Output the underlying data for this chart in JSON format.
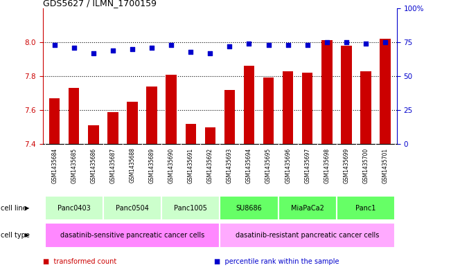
{
  "title": "GDS5627 / ILMN_1700159",
  "samples": [
    "GSM1435684",
    "GSM1435685",
    "GSM1435686",
    "GSM1435687",
    "GSM1435688",
    "GSM1435689",
    "GSM1435690",
    "GSM1435691",
    "GSM1435692",
    "GSM1435693",
    "GSM1435694",
    "GSM1435695",
    "GSM1435696",
    "GSM1435697",
    "GSM1435698",
    "GSM1435699",
    "GSM1435700",
    "GSM1435701"
  ],
  "bar_values": [
    7.67,
    7.73,
    7.51,
    7.59,
    7.65,
    7.74,
    7.81,
    7.52,
    7.5,
    7.72,
    7.86,
    7.79,
    7.83,
    7.82,
    8.01,
    7.98,
    7.83,
    8.02
  ],
  "dot_values": [
    73,
    71,
    67,
    69,
    70,
    71,
    73,
    68,
    67,
    72,
    74,
    73,
    73,
    73,
    75,
    75,
    74,
    75
  ],
  "ylim_left": [
    7.4,
    8.2
  ],
  "ylim_right": [
    0,
    100
  ],
  "yticks_left": [
    7.4,
    7.6,
    7.8,
    8.0
  ],
  "yticks_right": [
    0,
    25,
    50,
    75,
    100
  ],
  "ytick_labels_right": [
    "0",
    "25",
    "50",
    "75",
    "100%"
  ],
  "cell_line_groups": [
    {
      "label": "Panc0403",
      "start": 0,
      "end": 2,
      "color": "#ccffcc"
    },
    {
      "label": "Panc0504",
      "start": 3,
      "end": 5,
      "color": "#ccffcc"
    },
    {
      "label": "Panc1005",
      "start": 6,
      "end": 8,
      "color": "#ccffcc"
    },
    {
      "label": "SU8686",
      "start": 9,
      "end": 11,
      "color": "#66ff66"
    },
    {
      "label": "MiaPaCa2",
      "start": 12,
      "end": 14,
      "color": "#66ff66"
    },
    {
      "label": "Panc1",
      "start": 15,
      "end": 17,
      "color": "#66ff66"
    }
  ],
  "cell_type_groups": [
    {
      "label": "dasatinib-sensitive pancreatic cancer cells",
      "start": 0,
      "end": 8,
      "color": "#ff88ff"
    },
    {
      "label": "dasatinib-resistant pancreatic cancer cells",
      "start": 9,
      "end": 17,
      "color": "#ffaaff"
    }
  ],
  "bar_color": "#cc0000",
  "dot_color": "#0000cc",
  "grid_color": "#000000",
  "left_axis_color": "#cc0000",
  "right_axis_color": "#0000cc",
  "bg_color": "#ffffff",
  "tick_bg_color": "#cccccc",
  "legend_items": [
    {
      "color": "#cc0000",
      "label": "transformed count"
    },
    {
      "color": "#0000cc",
      "label": "percentile rank within the sample"
    }
  ]
}
